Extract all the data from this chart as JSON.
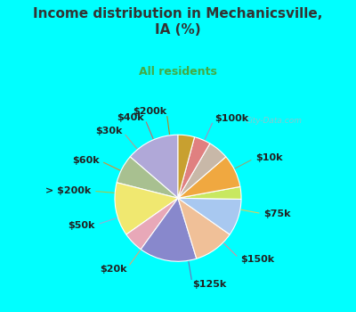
{
  "title": "Income distribution in Mechanicsville,\nIA (%)",
  "subtitle": "All residents",
  "background_color": "#00FFFF",
  "watermark": "City-Data.com",
  "labels": [
    "$100k",
    "$10k",
    "$75k",
    "$150k",
    "$125k",
    "$20k",
    "$50k",
    "> $200k",
    "$60k",
    "$30k",
    "$40k",
    "$200k"
  ],
  "values": [
    13,
    7,
    13,
    5,
    14,
    10,
    9,
    3,
    8,
    5,
    4,
    4
  ],
  "colors": [
    "#b0a8d8",
    "#a8c090",
    "#f0e870",
    "#e8a8b8",
    "#8888cc",
    "#f0c098",
    "#a8c8f0",
    "#c8e860",
    "#f0a840",
    "#c8b8a8",
    "#e08080",
    "#c8a030"
  ],
  "line_colors": [
    "#a090c0",
    "#90a878",
    "#d8d060",
    "#d890a0",
    "#7070b8",
    "#d8a878",
    "#90b0d8",
    "#a8c848",
    "#d89030",
    "#b0a090",
    "#c86868",
    "#b08820"
  ],
  "startangle": 90,
  "label_fontsize": 8,
  "title_fontsize": 11,
  "subtitle_fontsize": 9,
  "title_color": "#333333",
  "subtitle_color": "#44aa44"
}
